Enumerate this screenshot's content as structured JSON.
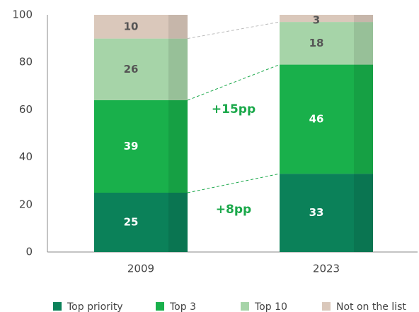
{
  "chart_data": {
    "type": "stacked-bar",
    "categories": [
      "2009",
      "2023"
    ],
    "series": [
      {
        "name": "Top priority",
        "color": "#0b8159",
        "values": [
          25,
          33
        ]
      },
      {
        "name": "Top 3",
        "color": "#19b04b",
        "values": [
          39,
          46
        ]
      },
      {
        "name": "Top 10",
        "color": "#a6d4a8",
        "values": [
          26,
          18
        ]
      },
      {
        "name": "Not on the list",
        "color": "#dac8bb",
        "values": [
          10,
          3
        ]
      }
    ],
    "ylim": [
      0,
      100
    ],
    "yticks": [
      0,
      20,
      40,
      60,
      80,
      100
    ],
    "annotations": [
      "+15pp",
      "+8pp"
    ],
    "grid": false,
    "legend": "bottom"
  }
}
